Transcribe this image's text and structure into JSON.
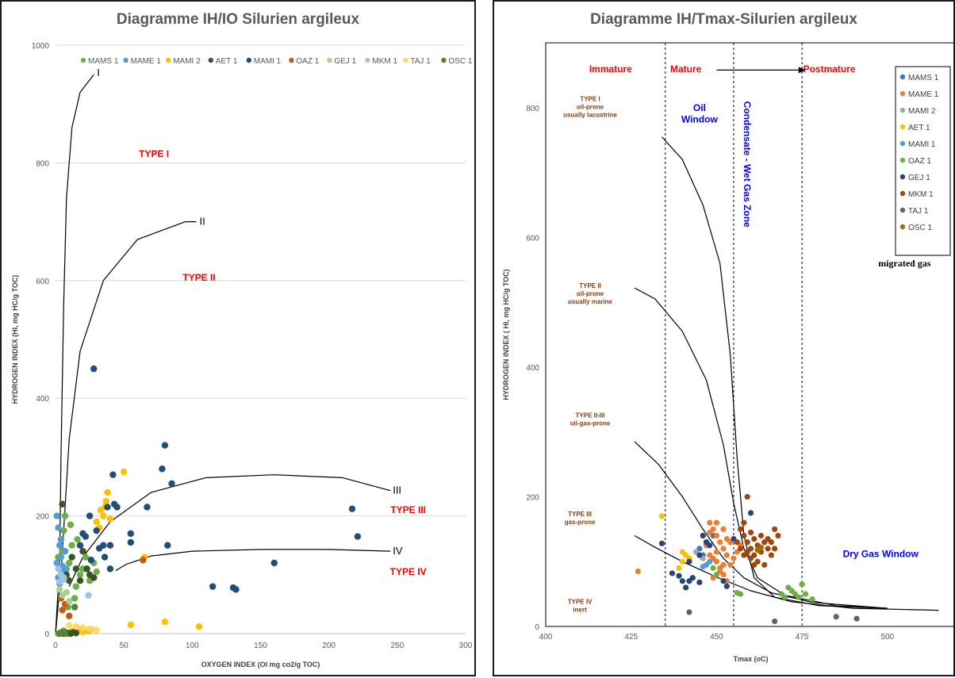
{
  "chart_data": [
    {
      "type": "scatter",
      "title": "Diagramme IH/IO Silurien argileux",
      "xlabel": "OXYGEN INDEX (OI mg co2/g TOC)",
      "ylabel": "HYDROGEN INDEX (HI, mg HC/g TOC)",
      "xlim": [
        0,
        300
      ],
      "ylim": [
        0,
        1000
      ],
      "xticks": [
        "0",
        "50",
        "100",
        "150",
        "200",
        "250",
        "300"
      ],
      "yticks": [
        "0",
        "200",
        "400",
        "600",
        "800",
        "1000"
      ],
      "grid": true,
      "legend_position": "top",
      "series": [
        {
          "name": "MAMS 1",
          "color": "#70ad47",
          "points": [
            [
              2,
              130
            ],
            [
              4,
              160
            ],
            [
              6,
              175
            ],
            [
              3,
              110
            ],
            [
              5,
              140
            ],
            [
              8,
              95
            ],
            [
              10,
              120
            ],
            [
              12,
              150
            ],
            [
              15,
              80
            ],
            [
              18,
              100
            ],
            [
              20,
              110
            ],
            [
              22,
              130
            ],
            [
              25,
              90
            ],
            [
              28,
              120
            ],
            [
              30,
              105
            ],
            [
              14,
              60
            ],
            [
              9,
              45
            ],
            [
              7,
              200
            ],
            [
              11,
              185
            ],
            [
              16,
              160
            ],
            [
              2,
              0
            ],
            [
              4,
              2
            ],
            [
              6,
              5
            ],
            [
              8,
              0
            ],
            [
              12,
              3
            ]
          ]
        },
        {
          "name": "MAME 1",
          "color": "#5b9bd5",
          "points": [
            [
              1,
              200
            ],
            [
              2,
              180
            ],
            [
              3,
              150
            ],
            [
              4,
              130
            ],
            [
              5,
              115
            ],
            [
              6,
              105
            ],
            [
              2,
              95
            ],
            [
              3,
              85
            ],
            [
              1,
              120
            ],
            [
              4,
              160
            ],
            [
              7,
              140
            ],
            [
              8,
              110
            ]
          ]
        },
        {
          "name": "MAMI 2",
          "color": "#ffc000",
          "points": [
            [
              30,
              190
            ],
            [
              33,
              210
            ],
            [
              35,
              200
            ],
            [
              37,
              225
            ],
            [
              38,
              240
            ],
            [
              32,
              180
            ],
            [
              36,
              215
            ],
            [
              40,
              195
            ],
            [
              50,
              275
            ],
            [
              65,
              130
            ],
            [
              55,
              15
            ],
            [
              80,
              20
            ],
            [
              105,
              12
            ],
            [
              14,
              5
            ],
            [
              16,
              10
            ],
            [
              18,
              8
            ],
            [
              20,
              3
            ],
            [
              22,
              6
            ],
            [
              12,
              2
            ],
            [
              24,
              4
            ],
            [
              26,
              7
            ]
          ]
        },
        {
          "name": "AET 1",
          "color": "#375623",
          "points": [
            [
              5,
              220
            ],
            [
              8,
              100
            ],
            [
              10,
              90
            ],
            [
              12,
              130
            ],
            [
              15,
              110
            ],
            [
              18,
              90
            ],
            [
              20,
              140
            ],
            [
              25,
              100
            ],
            [
              23,
              110
            ],
            [
              28,
              95
            ],
            [
              6,
              0
            ],
            [
              9,
              1
            ],
            [
              11,
              0
            ],
            [
              13,
              2
            ],
            [
              15,
              1
            ]
          ]
        },
        {
          "name": "MAMI 1",
          "color": "#1f4e79",
          "points": [
            [
              28,
              450
            ],
            [
              25,
              200
            ],
            [
              20,
              170
            ],
            [
              22,
              165
            ],
            [
              30,
              175
            ],
            [
              35,
              150
            ],
            [
              38,
              215
            ],
            [
              40,
              150
            ],
            [
              42,
              270
            ],
            [
              43,
              220
            ],
            [
              45,
              215
            ],
            [
              36,
              130
            ],
            [
              32,
              145
            ],
            [
              40,
              110
            ],
            [
              55,
              170
            ],
            [
              55,
              155
            ],
            [
              78,
              280
            ],
            [
              80,
              320
            ],
            [
              85,
              255
            ],
            [
              82,
              150
            ],
            [
              67,
              215
            ],
            [
              115,
              80
            ],
            [
              130,
              78
            ],
            [
              132,
              75
            ],
            [
              160,
              120
            ],
            [
              217,
              212
            ],
            [
              221,
              165
            ],
            [
              18,
              150
            ],
            [
              26,
              125
            ]
          ]
        },
        {
          "name": "OAZ 1",
          "color": "#c55a11",
          "points": [
            [
              4,
              60
            ],
            [
              5,
              40
            ],
            [
              7,
              50
            ],
            [
              10,
              30
            ],
            [
              64,
              125
            ]
          ]
        },
        {
          "name": "GEJ 1",
          "color": "#a9d18e",
          "points": [
            [
              3,
              75
            ],
            [
              5,
              65
            ],
            [
              8,
              70
            ],
            [
              10,
              55
            ],
            [
              6,
              95
            ]
          ]
        },
        {
          "name": "MKM 1",
          "color": "#9dc3e6",
          "points": [
            [
              2,
              110
            ],
            [
              4,
              100
            ],
            [
              6,
              92
            ],
            [
              3,
              88
            ],
            [
              24,
              65
            ]
          ]
        },
        {
          "name": "TAJ 1",
          "color": "#ffd966",
          "points": [
            [
              10,
              14
            ],
            [
              15,
              12
            ],
            [
              20,
              10
            ],
            [
              25,
              8
            ],
            [
              30,
              6
            ]
          ]
        },
        {
          "name": "OSC 1",
          "color": "#548235",
          "points": [
            [
              3,
              0
            ],
            [
              5,
              2
            ],
            [
              7,
              1
            ],
            [
              14,
              45
            ]
          ]
        }
      ],
      "curve_labels": [
        "I",
        "II",
        "III",
        "IV"
      ],
      "annotations": [
        "TYPE I",
        "TYPE II",
        "TYPE III",
        "TYPE IV"
      ]
    },
    {
      "type": "scatter",
      "title": "Diagramme IH/Tmax-Silurien argileux",
      "xlabel": "Tmax (oC)",
      "ylabel": "HYDROGEN INDEX ( HI, mg HC/g TOC)",
      "xlim": [
        400,
        520
      ],
      "ylim": [
        0,
        900
      ],
      "xticks": [
        "400",
        "425",
        "450",
        "475",
        "500"
      ],
      "yticks": [
        "0",
        "200",
        "400",
        "600",
        "800"
      ],
      "grid": false,
      "legend_position": "right",
      "maturity_labels": [
        "Immature",
        "Mature",
        "Postmature"
      ],
      "zones": {
        "oil": "Oil Window",
        "condensate": "Condensate - Wet Gas Zone",
        "dry_gas": "Dry Gas Window",
        "migrated": "migrated gas"
      },
      "kerogen_labels": [
        {
          "title": "TYPE I",
          "lines": [
            "oil-prone",
            "usually lacustrine"
          ]
        },
        {
          "title": "TYPE II",
          "lines": [
            "oil-prone",
            "usually marine"
          ]
        },
        {
          "title": "TYPE II-III",
          "lines": [
            "oil-gas-prone"
          ]
        },
        {
          "title": "TYPE III",
          "lines": [
            "gas-prone"
          ]
        },
        {
          "title": "TYPE IV",
          "lines": [
            "inert"
          ]
        }
      ],
      "series": [
        {
          "name": "MAMS 1",
          "color": "#4472c4",
          "points": [
            [
              445,
              120
            ],
            [
              447,
              130
            ],
            [
              449,
              140
            ],
            [
              446,
              110
            ]
          ]
        },
        {
          "name": "MAME 1",
          "color": "#ed7d31",
          "points": [
            [
              427,
              85
            ],
            [
              448,
              160
            ],
            [
              449,
              150
            ],
            [
              450,
              140
            ],
            [
              451,
              130
            ],
            [
              452,
              120
            ],
            [
              453,
              110
            ],
            [
              450,
              100
            ],
            [
              451,
              90
            ],
            [
              452,
              80
            ],
            [
              449,
              75
            ],
            [
              453,
              70
            ],
            [
              454,
              95
            ],
            [
              455,
              105
            ],
            [
              456,
              115
            ],
            [
              457,
              125
            ],
            [
              448,
              145
            ],
            [
              450,
              115
            ],
            [
              452,
              95
            ],
            [
              451,
              85
            ],
            [
              453,
              135
            ],
            [
              449,
              105
            ],
            [
              447,
              125
            ],
            [
              454,
              130
            ],
            [
              452,
              150
            ],
            [
              450,
              160
            ],
            [
              448,
              110
            ]
          ]
        },
        {
          "name": "MAMI 2",
          "color": "#a5a5a5",
          "points": [
            [
              444,
              115
            ],
            [
              446,
              105
            ]
          ]
        },
        {
          "name": "AET 1",
          "color": "#ffc000",
          "points": [
            [
              434,
              170
            ],
            [
              439,
              90
            ],
            [
              440,
              115
            ],
            [
              441,
              110
            ],
            [
              442,
              105
            ],
            [
              440,
              100
            ]
          ]
        },
        {
          "name": "MAMI 1",
          "color": "#5b9bd5",
          "points": [
            [
              448,
              100
            ],
            [
              447,
              95
            ],
            [
              446,
              92
            ]
          ]
        },
        {
          "name": "OAZ 1",
          "color": "#70ad47",
          "points": [
            [
              450,
              80
            ],
            [
              456,
              52
            ],
            [
              457,
              50
            ],
            [
              469,
              50
            ],
            [
              470,
              45
            ],
            [
              471,
              60
            ],
            [
              472,
              55
            ],
            [
              473,
              50
            ],
            [
              474,
              45
            ],
            [
              475,
              65
            ],
            [
              476,
              50
            ],
            [
              478,
              42
            ],
            [
              449,
              90
            ]
          ]
        },
        {
          "name": "GEJ 1",
          "color": "#264478",
          "points": [
            [
              434,
              128
            ],
            [
              437,
              82
            ],
            [
              439,
              78
            ],
            [
              440,
              70
            ],
            [
              441,
              60
            ],
            [
              442,
              70
            ],
            [
              443,
              75
            ],
            [
              445,
              68
            ],
            [
              446,
              140
            ],
            [
              447,
              130
            ],
            [
              448,
              125
            ],
            [
              452,
              70
            ],
            [
              453,
              62
            ],
            [
              455,
              135
            ],
            [
              460,
              175
            ],
            [
              445,
              110
            ],
            [
              442,
              100
            ]
          ]
        },
        {
          "name": "MKM 1",
          "color": "#9e480e",
          "points": [
            [
              459,
              200
            ],
            [
              457,
              150
            ],
            [
              458,
              140
            ],
            [
              459,
              130
            ],
            [
              460,
              120
            ],
            [
              461,
              110
            ],
            [
              462,
              100
            ],
            [
              463,
              140
            ],
            [
              464,
              130
            ],
            [
              465,
              120
            ],
            [
              466,
              110
            ],
            [
              467,
              150
            ],
            [
              468,
              140
            ],
            [
              458,
              160
            ],
            [
              459,
              115
            ],
            [
              460,
              145
            ],
            [
              461,
              135
            ],
            [
              462,
              125
            ],
            [
              463,
              115
            ],
            [
              464,
              95
            ],
            [
              465,
              135
            ],
            [
              466,
              130
            ],
            [
              460,
              105
            ],
            [
              461,
              95
            ],
            [
              467,
              120
            ],
            [
              456,
              130
            ],
            [
              457,
              120
            ],
            [
              458,
              110
            ]
          ]
        },
        {
          "name": "TAJ 1",
          "color": "#636363",
          "points": [
            [
              442,
              22
            ],
            [
              467,
              8
            ],
            [
              485,
              15
            ],
            [
              491,
              12
            ]
          ]
        },
        {
          "name": "OSC 1",
          "color": "#997300",
          "points": [
            [
              462,
              118
            ],
            [
              463,
              122
            ]
          ]
        }
      ]
    }
  ]
}
